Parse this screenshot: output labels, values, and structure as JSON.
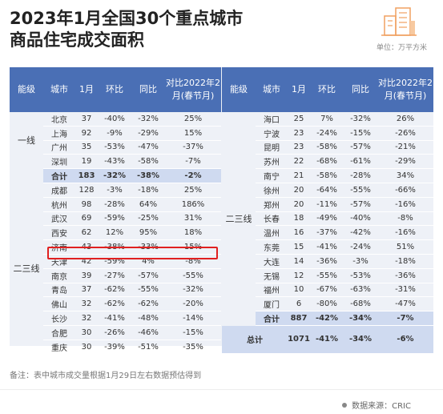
{
  "title_line1": "2023年1月全国30个重点城市",
  "title_line2": "商品住宅成交面积",
  "unit": "单位：万平方米",
  "headers": [
    "能级",
    "城市",
    "1月",
    "环比",
    "同比",
    "对比2022年2月(春节月)"
  ],
  "left_groups": [
    {
      "name": "一线",
      "rows": [
        [
          "北京",
          "37",
          "-40%",
          "-32%",
          "25%"
        ],
        [
          "上海",
          "92",
          "-9%",
          "-29%",
          "15%"
        ],
        [
          "广州",
          "35",
          "-53%",
          "-47%",
          "-37%"
        ],
        [
          "深圳",
          "19",
          "-43%",
          "-58%",
          "-7%"
        ]
      ]
    },
    {
      "name": "subtotal",
      "rows": [
        [
          "合计",
          "183",
          "-32%",
          "-38%",
          "-2%"
        ]
      ]
    },
    {
      "name": "二三线",
      "rows": [
        [
          "成都",
          "128",
          "-3%",
          "-18%",
          "25%"
        ],
        [
          "杭州",
          "98",
          "-28%",
          "64%",
          "186%"
        ],
        [
          "武汉",
          "69",
          "-59%",
          "-25%",
          "31%"
        ],
        [
          "西安",
          "62",
          "12%",
          "95%",
          "18%"
        ],
        [
          "济南",
          "43",
          "-38%",
          "-33%",
          "15%"
        ],
        [
          "天津",
          "42",
          "-59%",
          "4%",
          "-8%"
        ],
        [
          "南京",
          "39",
          "-27%",
          "-57%",
          "-55%"
        ],
        [
          "青岛",
          "37",
          "-62%",
          "-55%",
          "-32%"
        ],
        [
          "佛山",
          "32",
          "-62%",
          "-62%",
          "-20%"
        ],
        [
          "长沙",
          "32",
          "-41%",
          "-48%",
          "-14%"
        ],
        [
          "合肥",
          "30",
          "-26%",
          "-46%",
          "-15%"
        ],
        [
          "重庆",
          "30",
          "-39%",
          "-51%",
          "-35%"
        ]
      ]
    }
  ],
  "right_group_name": "二三线",
  "right_rows": [
    [
      "海口",
      "25",
      "7%",
      "-32%",
      "26%"
    ],
    [
      "宁波",
      "23",
      "-24%",
      "-15%",
      "-26%"
    ],
    [
      "昆明",
      "23",
      "-58%",
      "-57%",
      "-21%"
    ],
    [
      "苏州",
      "22",
      "-68%",
      "-61%",
      "-29%"
    ],
    [
      "南宁",
      "21",
      "-58%",
      "-28%",
      "34%"
    ],
    [
      "徐州",
      "20",
      "-64%",
      "-55%",
      "-66%"
    ],
    [
      "郑州",
      "20",
      "-11%",
      "-57%",
      "-16%"
    ],
    [
      "长春",
      "18",
      "-49%",
      "-40%",
      "-8%"
    ],
    [
      "温州",
      "16",
      "-37%",
      "-42%",
      "-16%"
    ],
    [
      "东莞",
      "15",
      "-41%",
      "-24%",
      "51%"
    ],
    [
      "大连",
      "14",
      "-36%",
      "-3%",
      "-18%"
    ],
    [
      "无锡",
      "12",
      "-55%",
      "-53%",
      "-36%"
    ],
    [
      "福州",
      "10",
      "-67%",
      "-63%",
      "-31%"
    ],
    [
      "厦门",
      "6",
      "-80%",
      "-68%",
      "-47%"
    ]
  ],
  "right_subtotal": [
    "合计",
    "887",
    "-42%",
    "-34%",
    "-7%"
  ],
  "grand_total": [
    "总计",
    "1071",
    "-41%",
    "-34%",
    "-6%"
  ],
  "note": "备注：表中城市成交量根据1月29日左右数据预估得到",
  "source": "数据来源：CRIC",
  "colors": {
    "header": "#4a6fb5",
    "stripe": "#eef1f7",
    "highlight": "#cfdaf0",
    "red_box": "#e02020"
  }
}
